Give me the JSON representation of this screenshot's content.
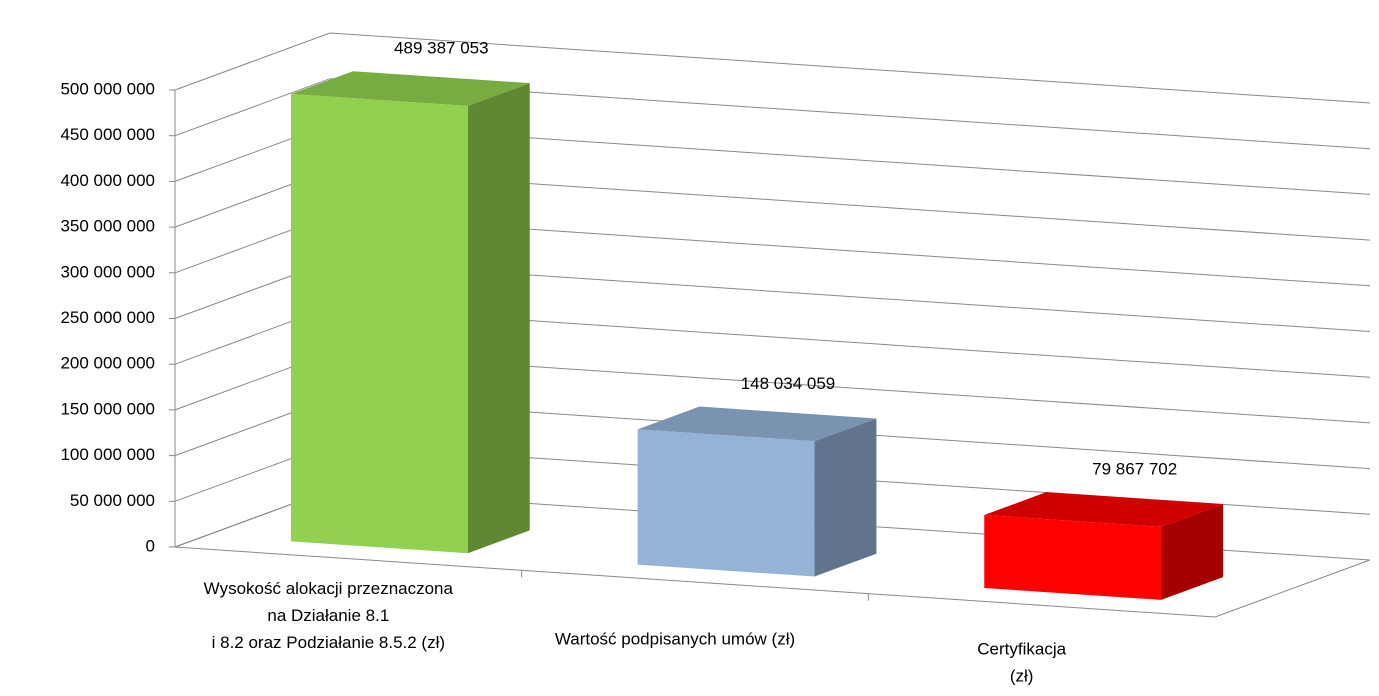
{
  "chart_data": {
    "type": "bar3d",
    "categories": [
      [
        "Wysokość alokacji przeznaczona",
        "na Działanie 8.1",
        "i 8.2  oraz Podziałanie 8.5.2 (zł)"
      ],
      [
        "Wartość podpisanych umów (zł)"
      ],
      [
        "Certyfikacja",
        "(zł)"
      ]
    ],
    "values": [
      489387053,
      148034059,
      79867702
    ],
    "value_labels": [
      "489 387 053",
      "148 034 059",
      "79 867 702"
    ],
    "colors": [
      "#92d050",
      "#95b3d7",
      "#ff0000"
    ],
    "ylim": [
      0,
      500000000
    ],
    "yticks": [
      0,
      {
        "value": 50000000,
        "label": "50 000 000"
      },
      {
        "value": 100000000,
        "label": "100 000 000"
      },
      {
        "value": 150000000,
        "label": "150 000 000"
      },
      {
        "value": 200000000,
        "label": "200 000 000"
      },
      {
        "value": 250000000,
        "label": "250 000 000"
      },
      {
        "value": 300000000,
        "label": "300 000 000"
      },
      {
        "value": 350000000,
        "label": "350 000 000"
      },
      {
        "value": 400000000,
        "label": "400 000 000"
      },
      {
        "value": 450000000,
        "label": "450 000 000"
      },
      {
        "value": 500000000,
        "label": "500 000 000"
      }
    ],
    "grid": true
  }
}
